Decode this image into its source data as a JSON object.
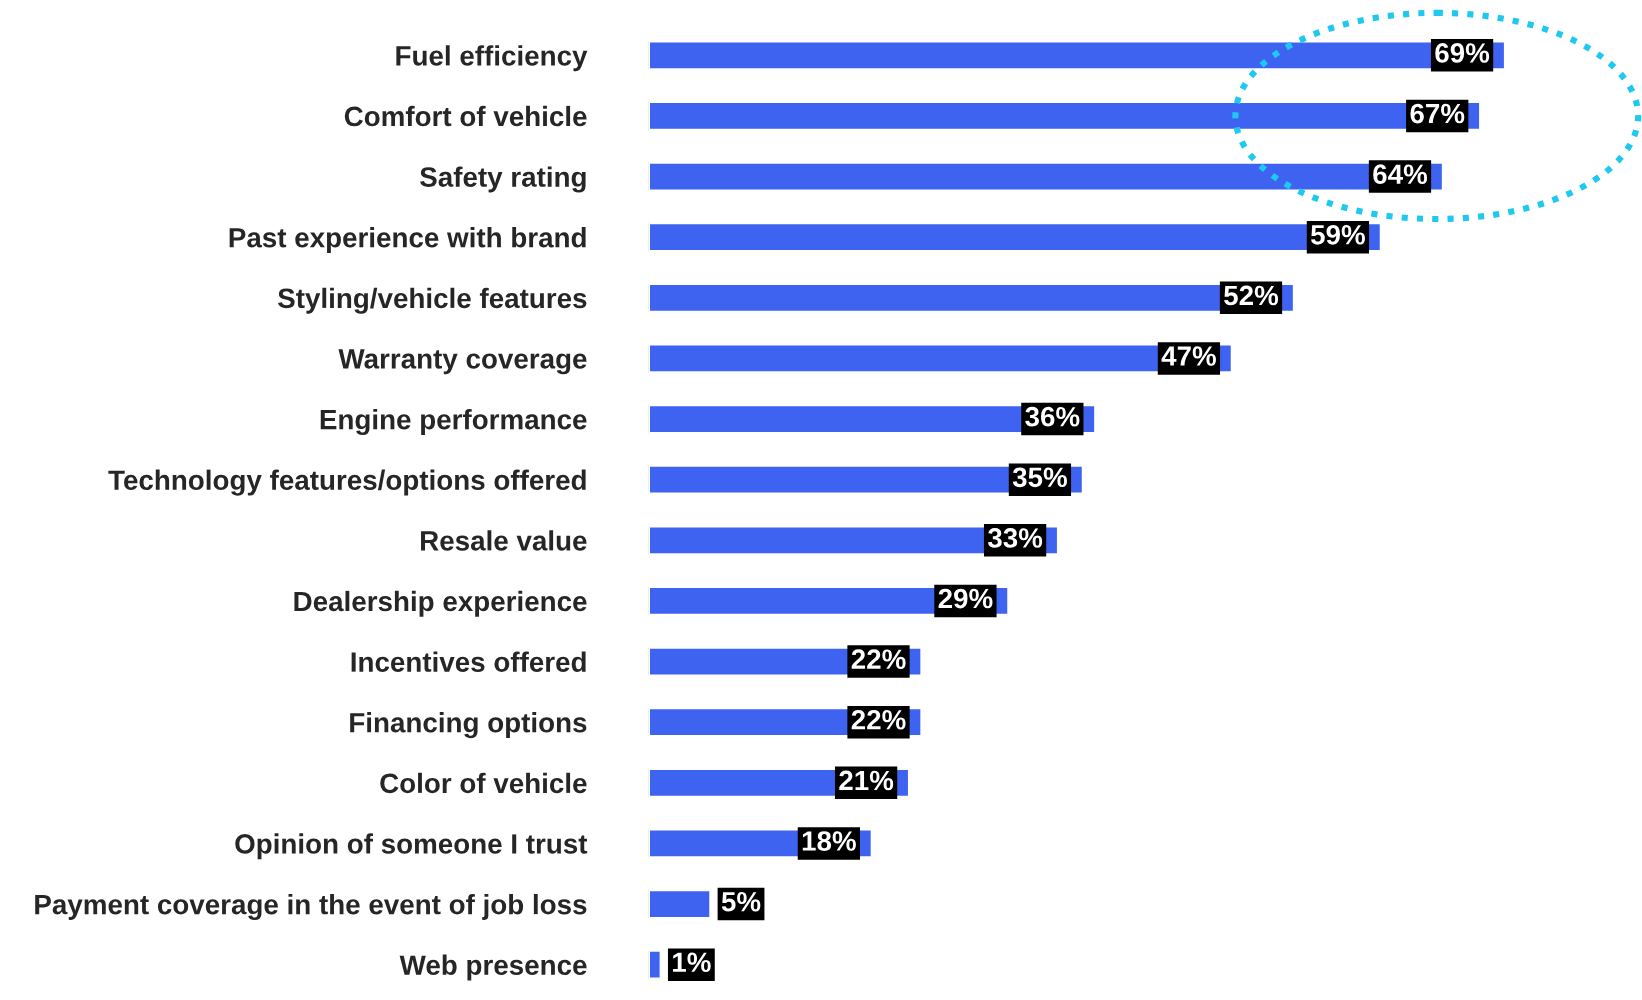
{
  "chart_data": {
    "type": "bar",
    "orientation": "horizontal",
    "grid": false,
    "legend": false,
    "color": "#3d63f0",
    "categories": [
      "Fuel efficiency",
      "Comfort of vehicle",
      "Safety rating",
      "Past experience with brand",
      "Styling/vehicle features",
      "Warranty coverage",
      "Engine performance",
      "Technology features/options offered",
      "Resale value",
      "Dealership experience",
      "Incentives offered",
      "Financing options",
      "Color of vehicle",
      "Opinion of someone I trust",
      "Payment coverage in the event of job loss",
      "Web presence"
    ],
    "values": [
      69,
      67,
      64,
      59,
      52,
      47,
      36,
      35,
      33,
      29,
      22,
      22,
      21,
      18,
      5,
      1
    ],
    "value_labels": [
      "69%",
      "67%",
      "64%",
      "59%",
      "52%",
      "47%",
      "36%",
      "35%",
      "33%",
      "29%",
      "22%",
      "22%",
      "21%",
      "18%",
      "5%",
      "1%"
    ]
  }
}
